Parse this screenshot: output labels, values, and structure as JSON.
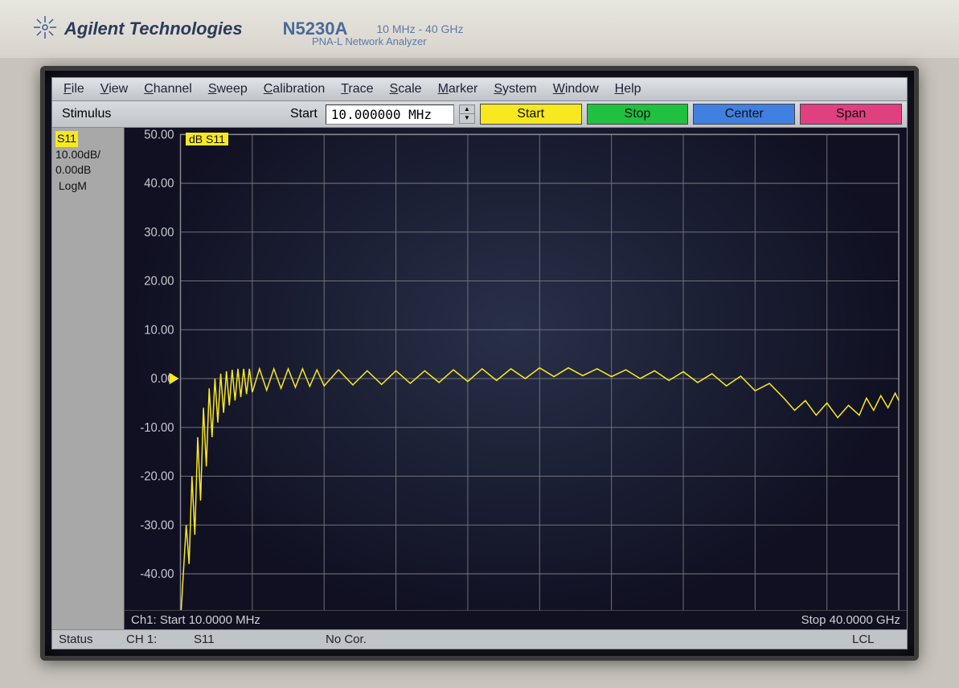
{
  "bezel": {
    "brand": "Agilent Technologies",
    "model": "N5230A",
    "freq_range": "10 MHz - 40 GHz",
    "subtitle": "PNA-L Network Analyzer"
  },
  "menubar": [
    "File",
    "View",
    "Channel",
    "Sweep",
    "Calibration",
    "Trace",
    "Scale",
    "Marker",
    "System",
    "Window",
    "Help"
  ],
  "toolbar": {
    "stimulus_label": "Stimulus",
    "start_label": "Start",
    "freq_value": "10.000000 MHz",
    "buttons": {
      "start": {
        "label": "Start",
        "bg": "#f8e820"
      },
      "stop": {
        "label": "Stop",
        "bg": "#20c040"
      },
      "center": {
        "label": "Center",
        "bg": "#4080e0"
      },
      "span": {
        "label": "Span",
        "bg": "#e04080"
      }
    }
  },
  "sidebar": {
    "param": "S11",
    "scale": "10.00dB/",
    "ref": "0.00dB",
    "format": "LogM"
  },
  "chart": {
    "type": "line",
    "title_badge": "dB S11",
    "y_ticks": [
      "50.00",
      "40.00",
      "30.00",
      "20.00",
      "10.00",
      "0.00",
      "-10.00",
      "-20.00",
      "-30.00",
      "-40.00",
      "-50.00"
    ],
    "ylim": [
      -50,
      50
    ],
    "y_step": 10,
    "x_divisions": 10,
    "x_start_label": "Ch1: Start 10.0000 MHz",
    "x_stop_label": "Stop 40.0000 GHz",
    "grid_color": "#707078",
    "trace_color": "#f8e820",
    "background_start": "#283048",
    "background_end": "#101022",
    "ref_y": 0,
    "trace": [
      [
        0.0,
        -50.0
      ],
      [
        0.004,
        -40.0
      ],
      [
        0.008,
        -30.0
      ],
      [
        0.012,
        -38.0
      ],
      [
        0.016,
        -20.0
      ],
      [
        0.02,
        -32.0
      ],
      [
        0.024,
        -12.0
      ],
      [
        0.028,
        -25.0
      ],
      [
        0.032,
        -6.0
      ],
      [
        0.036,
        -18.0
      ],
      [
        0.04,
        -2.0
      ],
      [
        0.044,
        -12.0
      ],
      [
        0.048,
        0.0
      ],
      [
        0.052,
        -9.0
      ],
      [
        0.056,
        1.0
      ],
      [
        0.06,
        -7.0
      ],
      [
        0.064,
        1.5
      ],
      [
        0.068,
        -5.5
      ],
      [
        0.072,
        1.8
      ],
      [
        0.076,
        -4.5
      ],
      [
        0.08,
        2.0
      ],
      [
        0.084,
        -3.8
      ],
      [
        0.088,
        2.0
      ],
      [
        0.092,
        -3.2
      ],
      [
        0.096,
        2.0
      ],
      [
        0.1,
        -2.8
      ],
      [
        0.11,
        2.0
      ],
      [
        0.12,
        -2.4
      ],
      [
        0.13,
        2.0
      ],
      [
        0.14,
        -2.0
      ],
      [
        0.15,
        2.0
      ],
      [
        0.16,
        -1.8
      ],
      [
        0.17,
        2.0
      ],
      [
        0.18,
        -1.6
      ],
      [
        0.19,
        1.8
      ],
      [
        0.2,
        -1.5
      ],
      [
        0.22,
        1.8
      ],
      [
        0.24,
        -1.3
      ],
      [
        0.26,
        1.6
      ],
      [
        0.28,
        -1.2
      ],
      [
        0.3,
        1.6
      ],
      [
        0.32,
        -1.0
      ],
      [
        0.34,
        1.6
      ],
      [
        0.36,
        -0.8
      ],
      [
        0.38,
        1.8
      ],
      [
        0.4,
        -0.6
      ],
      [
        0.42,
        2.0
      ],
      [
        0.44,
        -0.4
      ],
      [
        0.46,
        2.0
      ],
      [
        0.48,
        0.0
      ],
      [
        0.5,
        2.2
      ],
      [
        0.52,
        0.4
      ],
      [
        0.54,
        2.2
      ],
      [
        0.56,
        0.6
      ],
      [
        0.58,
        2.0
      ],
      [
        0.6,
        0.4
      ],
      [
        0.62,
        1.8
      ],
      [
        0.64,
        0.0
      ],
      [
        0.66,
        1.6
      ],
      [
        0.68,
        -0.4
      ],
      [
        0.7,
        1.4
      ],
      [
        0.72,
        -0.8
      ],
      [
        0.74,
        1.0
      ],
      [
        0.76,
        -1.5
      ],
      [
        0.78,
        0.5
      ],
      [
        0.8,
        -2.5
      ],
      [
        0.82,
        -1.0
      ],
      [
        0.84,
        -4.0
      ],
      [
        0.855,
        -6.5
      ],
      [
        0.87,
        -4.5
      ],
      [
        0.885,
        -7.5
      ],
      [
        0.9,
        -5.0
      ],
      [
        0.915,
        -8.0
      ],
      [
        0.93,
        -5.5
      ],
      [
        0.945,
        -7.5
      ],
      [
        0.955,
        -4.0
      ],
      [
        0.965,
        -6.5
      ],
      [
        0.975,
        -3.5
      ],
      [
        0.985,
        -6.0
      ],
      [
        0.995,
        -3.0
      ],
      [
        1.0,
        -4.5
      ]
    ]
  },
  "statusbar": {
    "status_label": "Status",
    "channel": "CH 1:",
    "param": "S11",
    "corr": "No Cor.",
    "mode": "LCL"
  }
}
